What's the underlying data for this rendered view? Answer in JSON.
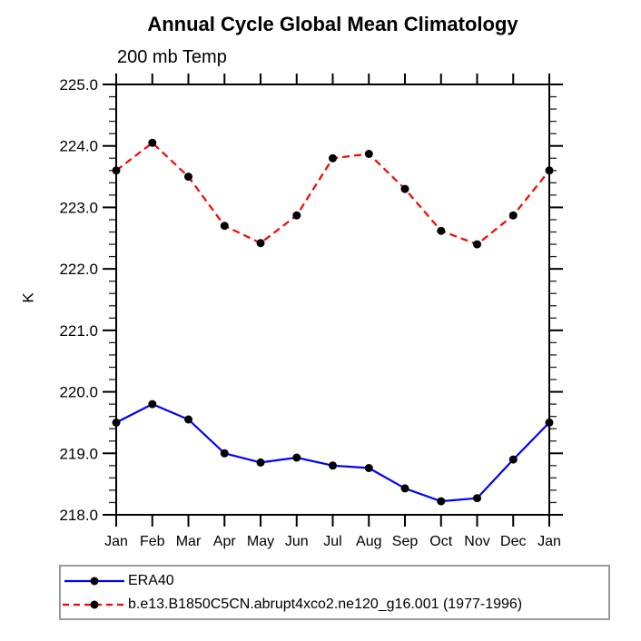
{
  "window": {
    "background": "#ffffff",
    "text_color": "#000000",
    "axis_color": "#000000",
    "legend_border_color": "#9a9a9a"
  },
  "chart_data": {
    "type": "line",
    "title": "Annual Cycle Global Mean Climatology",
    "subtitle": "200 mb Temp",
    "ylabel": "K",
    "xlabel": "",
    "categories": [
      "Jan",
      "Feb",
      "Mar",
      "Apr",
      "May",
      "Jun",
      "Jul",
      "Aug",
      "Sep",
      "Oct",
      "Nov",
      "Dec",
      "Jan"
    ],
    "ylim": [
      218.0,
      225.0
    ],
    "ytick_interval": 1.0,
    "yminor_interval": 0.2,
    "ytick_labels": [
      "225.0",
      "224.0",
      "223.0",
      "222.0",
      "221.0",
      "220.0",
      "219.0",
      "218.0"
    ],
    "grid": false,
    "legend_position": "below-left",
    "series": [
      {
        "name": "ERA40",
        "color": "#0000ff",
        "line_style": "solid",
        "marker": "filled-circle",
        "marker_color": "#000000",
        "values": [
          219.5,
          219.8,
          219.55,
          219.0,
          218.85,
          218.93,
          218.8,
          218.76,
          218.43,
          218.22,
          218.27,
          218.9,
          219.5
        ]
      },
      {
        "name": "b.e13.B1850C5CN.abrupt4xco2.ne120_g16.001 (1977-1996)",
        "color": "#ff0000",
        "line_style": "dashed",
        "marker": "filled-circle",
        "marker_color": "#000000",
        "values": [
          223.6,
          224.05,
          223.5,
          222.7,
          222.42,
          222.87,
          223.8,
          223.87,
          223.3,
          222.62,
          222.4,
          222.87,
          223.6
        ]
      }
    ]
  }
}
